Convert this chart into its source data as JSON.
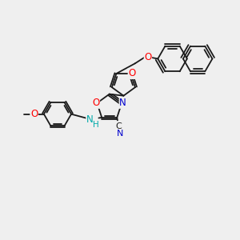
{
  "bg_color": "#efefef",
  "bond_color": "#1a1a1a",
  "o_color": "#ff0000",
  "n_color": "#0000cd",
  "nh_color": "#00aaaa",
  "lw": 1.3,
  "fs": 8.5,
  "xlim": [
    0,
    10
  ],
  "ylim": [
    0,
    10
  ]
}
